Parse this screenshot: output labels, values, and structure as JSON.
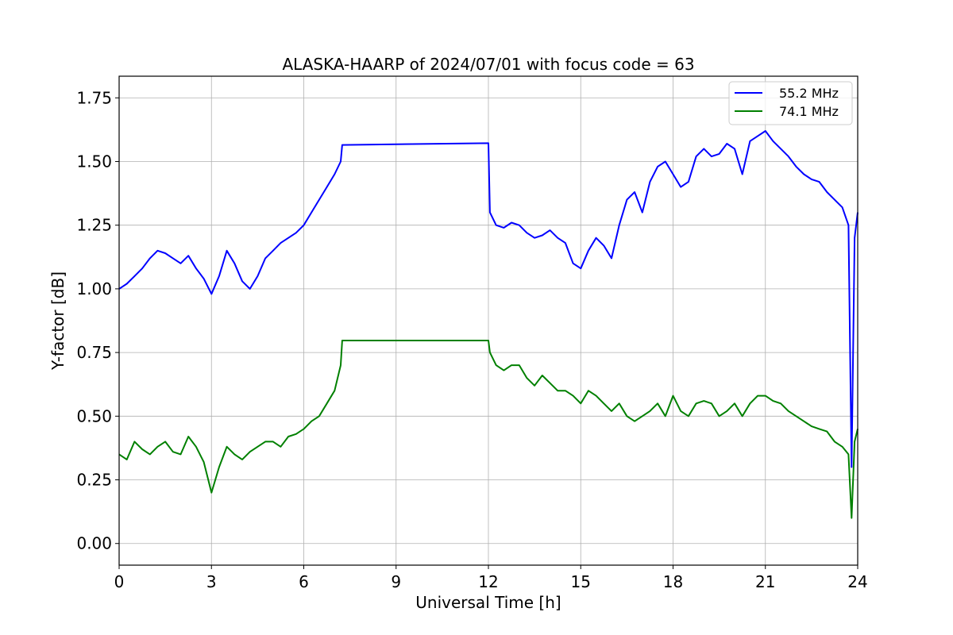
{
  "chart_data": {
    "type": "line",
    "title": "ALASKA-HAARP of 2024/07/01 with focus code = 63",
    "xlabel": "Universal Time [h]",
    "ylabel": "Y-factor [dB]",
    "xlim": [
      0,
      24
    ],
    "ylim": [
      -0.085,
      1.835
    ],
    "xticks": [
      0,
      3,
      6,
      9,
      12,
      15,
      18,
      21,
      24
    ],
    "xtick_labels": [
      "0",
      "3",
      "6",
      "9",
      "12",
      "15",
      "18",
      "21",
      "24"
    ],
    "yticks": [
      0.0,
      0.25,
      0.5,
      0.75,
      1.0,
      1.25,
      1.5,
      1.75
    ],
    "ytick_labels": [
      "0.00",
      "0.25",
      "0.50",
      "0.75",
      "1.00",
      "1.25",
      "1.50",
      "1.75"
    ],
    "grid": true,
    "legend_position": "top-right",
    "series": [
      {
        "name": "55.2 MHz",
        "color": "#0000ff",
        "x": [
          0,
          0.25,
          0.5,
          0.75,
          1,
          1.25,
          1.5,
          1.75,
          2,
          2.25,
          2.5,
          2.75,
          3,
          3.25,
          3.5,
          3.75,
          4,
          4.25,
          4.5,
          4.75,
          5,
          5.25,
          5.5,
          5.75,
          6,
          6.25,
          6.5,
          6.75,
          7,
          7.2,
          7.25,
          12,
          12.05,
          12.25,
          12.5,
          12.75,
          13,
          13.25,
          13.5,
          13.75,
          14,
          14.25,
          14.5,
          14.75,
          15,
          15.25,
          15.5,
          15.75,
          16,
          16.25,
          16.5,
          16.75,
          17,
          17.25,
          17.5,
          17.75,
          18,
          18.25,
          18.5,
          18.75,
          19,
          19.25,
          19.5,
          19.75,
          20,
          20.25,
          20.5,
          20.75,
          21,
          21.25,
          21.5,
          21.75,
          22,
          22.25,
          22.5,
          22.75,
          23,
          23.25,
          23.5,
          23.7,
          23.8,
          23.9,
          24
        ],
        "y": [
          1.0,
          1.02,
          1.05,
          1.08,
          1.12,
          1.15,
          1.14,
          1.12,
          1.1,
          1.13,
          1.08,
          1.04,
          0.98,
          1.05,
          1.15,
          1.1,
          1.03,
          1.0,
          1.05,
          1.12,
          1.15,
          1.18,
          1.2,
          1.22,
          1.25,
          1.3,
          1.35,
          1.4,
          1.45,
          1.5,
          1.565,
          1.572,
          1.3,
          1.25,
          1.24,
          1.26,
          1.25,
          1.22,
          1.2,
          1.21,
          1.23,
          1.2,
          1.18,
          1.1,
          1.08,
          1.15,
          1.2,
          1.17,
          1.12,
          1.25,
          1.35,
          1.38,
          1.3,
          1.42,
          1.48,
          1.5,
          1.45,
          1.4,
          1.42,
          1.52,
          1.55,
          1.52,
          1.53,
          1.57,
          1.55,
          1.45,
          1.58,
          1.6,
          1.62,
          1.58,
          1.55,
          1.52,
          1.48,
          1.45,
          1.43,
          1.42,
          1.38,
          1.35,
          1.32,
          1.25,
          0.3,
          1.2,
          1.3
        ]
      },
      {
        "name": "74.1 MHz",
        "color": "#008000",
        "x": [
          0,
          0.25,
          0.5,
          0.75,
          1,
          1.25,
          1.5,
          1.75,
          2,
          2.25,
          2.5,
          2.75,
          3,
          3.25,
          3.5,
          3.75,
          4,
          4.25,
          4.5,
          4.75,
          5,
          5.25,
          5.5,
          5.75,
          6,
          6.25,
          6.5,
          6.75,
          7,
          7.2,
          7.25,
          12,
          12.05,
          12.25,
          12.5,
          12.75,
          13,
          13.25,
          13.5,
          13.75,
          14,
          14.25,
          14.5,
          14.75,
          15,
          15.25,
          15.5,
          15.75,
          16,
          16.25,
          16.5,
          16.75,
          17,
          17.25,
          17.5,
          17.75,
          18,
          18.25,
          18.5,
          18.75,
          19,
          19.25,
          19.5,
          19.75,
          20,
          20.25,
          20.5,
          20.75,
          21,
          21.25,
          21.5,
          21.75,
          22,
          22.25,
          22.5,
          22.75,
          23,
          23.25,
          23.5,
          23.7,
          23.8,
          23.9,
          24
        ],
        "y": [
          0.35,
          0.33,
          0.4,
          0.37,
          0.35,
          0.38,
          0.4,
          0.36,
          0.35,
          0.42,
          0.38,
          0.32,
          0.2,
          0.3,
          0.38,
          0.35,
          0.33,
          0.36,
          0.38,
          0.4,
          0.4,
          0.38,
          0.42,
          0.43,
          0.45,
          0.48,
          0.5,
          0.55,
          0.6,
          0.7,
          0.797,
          0.797,
          0.75,
          0.7,
          0.68,
          0.7,
          0.7,
          0.65,
          0.62,
          0.66,
          0.63,
          0.6,
          0.6,
          0.58,
          0.55,
          0.6,
          0.58,
          0.55,
          0.52,
          0.55,
          0.5,
          0.48,
          0.5,
          0.52,
          0.55,
          0.5,
          0.58,
          0.52,
          0.5,
          0.55,
          0.56,
          0.55,
          0.5,
          0.52,
          0.55,
          0.5,
          0.55,
          0.58,
          0.58,
          0.56,
          0.55,
          0.52,
          0.5,
          0.48,
          0.46,
          0.45,
          0.44,
          0.4,
          0.38,
          0.35,
          0.1,
          0.4,
          0.45
        ]
      }
    ]
  }
}
